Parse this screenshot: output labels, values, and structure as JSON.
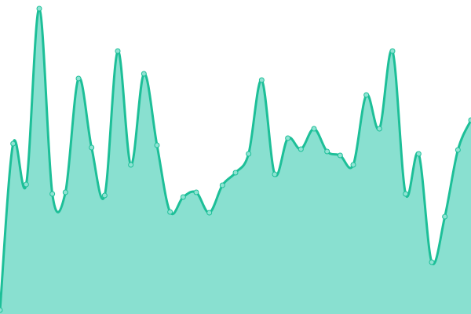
{
  "chart_data": {
    "type": "area",
    "title": "",
    "xlabel": "",
    "ylabel": "",
    "x": [
      0,
      1,
      2,
      3,
      4,
      5,
      6,
      7,
      8,
      9,
      10,
      11,
      12,
      13,
      14,
      15,
      16,
      17,
      18,
      19,
      20,
      21,
      22,
      23,
      24,
      25,
      26,
      27,
      28,
      29,
      30,
      31,
      32,
      33,
      34,
      35,
      36
    ],
    "values": [
      5,
      217,
      165,
      389,
      153,
      155,
      300,
      212,
      151,
      335,
      190,
      306,
      215,
      130,
      149,
      155,
      129,
      164,
      180,
      204,
      298,
      178,
      224,
      210,
      236,
      207,
      202,
      190,
      279,
      236,
      335,
      153,
      204,
      66,
      124,
      209,
      247
    ],
    "ylim": [
      0,
      400
    ],
    "grid": false,
    "axes_visible": false,
    "curve": "smooth",
    "line_color": "#1dbf98",
    "fill_color": "#89e0d0",
    "marker_fill": "#8fe3d3"
  }
}
